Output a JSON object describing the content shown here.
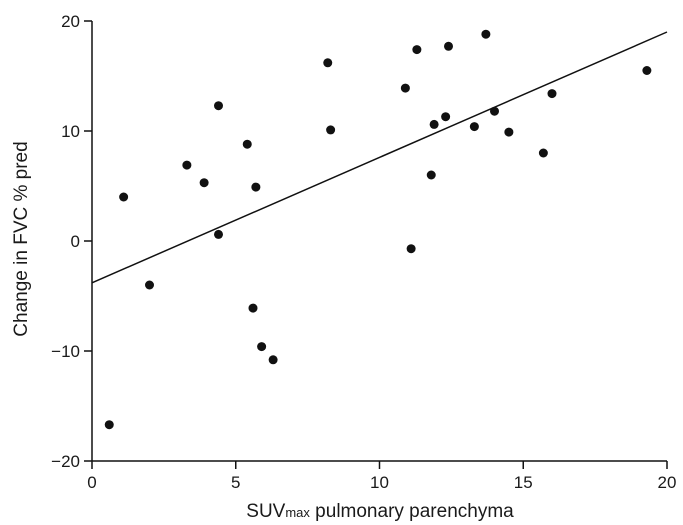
{
  "chart_data": {
    "type": "scatter",
    "xlabel_main": "SUV",
    "xlabel_sub": "max",
    "xlabel_rest": " pulmonary parenchyma",
    "ylabel": "Change in FVC % pred",
    "xlim": [
      0,
      20
    ],
    "ylim": [
      -20,
      20
    ],
    "x_ticks": [
      0,
      5,
      10,
      15,
      20
    ],
    "y_ticks": [
      -20,
      -10,
      0,
      10,
      20
    ],
    "x_tick_labels": [
      "0",
      "5",
      "10",
      "15",
      "20"
    ],
    "y_tick_labels": [
      "−20",
      "−10",
      "0",
      "10",
      "20"
    ],
    "grid": false,
    "marker_color": "#111111",
    "line_color": "#111111",
    "points": [
      {
        "x": 0.6,
        "y": -16.7
      },
      {
        "x": 1.1,
        "y": 4.0
      },
      {
        "x": 2.0,
        "y": -4.0
      },
      {
        "x": 3.3,
        "y": 6.9
      },
      {
        "x": 3.9,
        "y": 5.3
      },
      {
        "x": 4.4,
        "y": 12.3
      },
      {
        "x": 4.4,
        "y": 0.6
      },
      {
        "x": 5.4,
        "y": 8.8
      },
      {
        "x": 5.6,
        "y": -6.1
      },
      {
        "x": 5.7,
        "y": 4.9
      },
      {
        "x": 5.9,
        "y": -9.6
      },
      {
        "x": 6.3,
        "y": -10.8
      },
      {
        "x": 8.2,
        "y": 16.2
      },
      {
        "x": 8.3,
        "y": 10.1
      },
      {
        "x": 10.9,
        "y": 13.9
      },
      {
        "x": 11.1,
        "y": -0.7
      },
      {
        "x": 11.3,
        "y": 17.4
      },
      {
        "x": 11.8,
        "y": 6.0
      },
      {
        "x": 11.9,
        "y": 10.6
      },
      {
        "x": 12.3,
        "y": 11.3
      },
      {
        "x": 12.4,
        "y": 17.7
      },
      {
        "x": 13.3,
        "y": 10.4
      },
      {
        "x": 13.7,
        "y": 18.8
      },
      {
        "x": 14.0,
        "y": 11.8
      },
      {
        "x": 14.5,
        "y": 9.9
      },
      {
        "x": 15.7,
        "y": 8.0
      },
      {
        "x": 16.0,
        "y": 13.4
      },
      {
        "x": 19.3,
        "y": 15.5
      }
    ],
    "regression_line": {
      "x1": 0,
      "y1": -3.8,
      "x2": 20,
      "y2": 19.0
    }
  }
}
